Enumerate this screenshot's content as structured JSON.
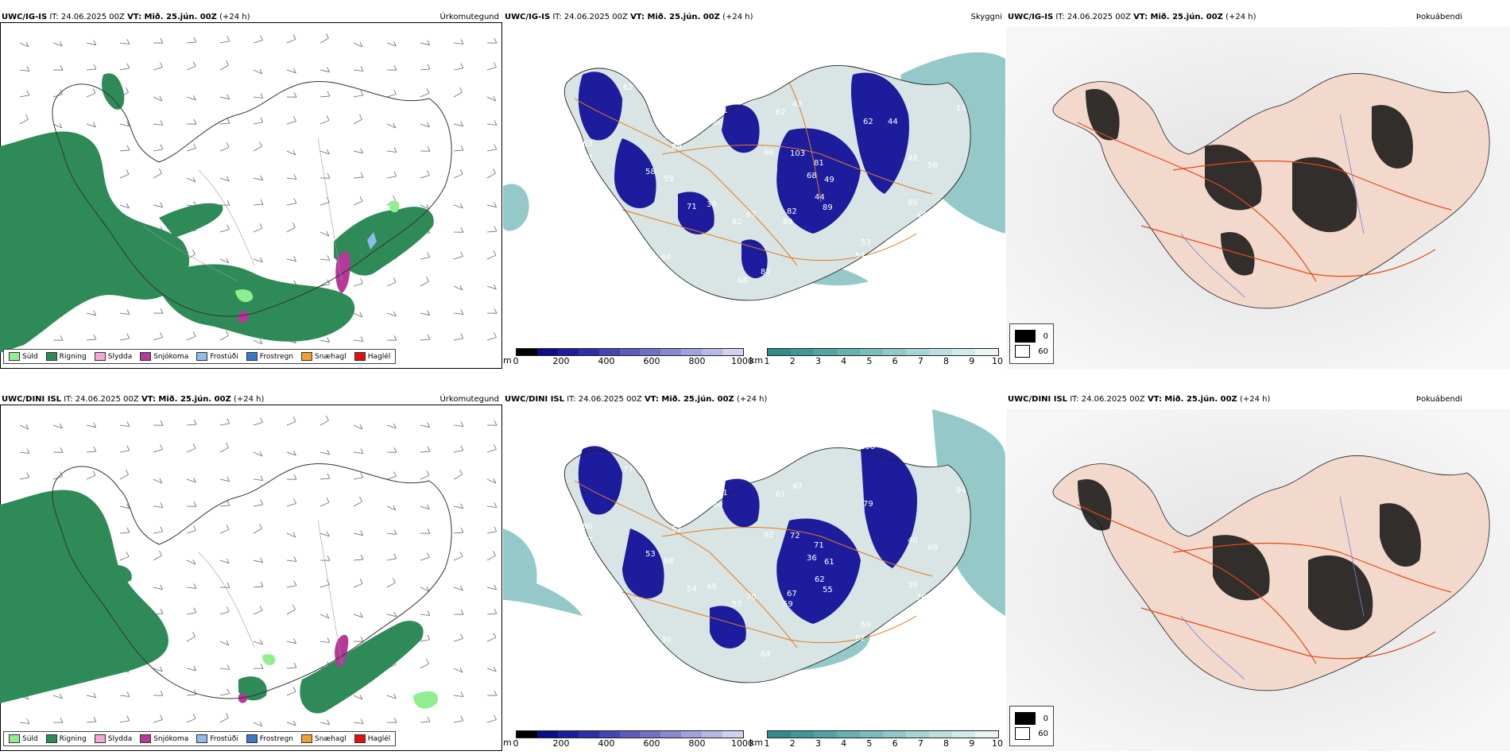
{
  "rows": [
    {
      "model": "UWC/IG-IS",
      "it": "IT: 24.06.2025 00Z",
      "vt": "VT: Mið. 25.jún. 00Z",
      "lead": "(+24 h)",
      "precip_labels": [],
      "cloud_labels": [
        "68",
        "38",
        "62",
        "53",
        "53",
        "13",
        "67",
        "60",
        "85",
        "45",
        "39",
        "82",
        "88",
        "48",
        "66",
        "66",
        "44",
        "59",
        "62",
        "82",
        "62",
        "49",
        "71",
        "43",
        "54",
        "63",
        "81",
        "82",
        "71",
        "48",
        "74",
        "103",
        "69",
        "55",
        "58",
        "61",
        "66",
        "89",
        "58",
        "44",
        "68",
        "52"
      ]
    },
    {
      "model": "UWC/DINI ISL",
      "it": "IT: 24.06.2025 00Z",
      "vt": "VT: Mið. 25.jún. 00Z",
      "lead": "(+24 h)",
      "precip_labels": [],
      "cloud_labels": [
        "36",
        "49",
        "61",
        "69",
        "77",
        "94",
        "70",
        "60",
        "39",
        "42",
        "100",
        "67",
        "57",
        "40",
        "30",
        "81",
        "62",
        "68",
        "79",
        "84",
        "77",
        "61",
        "54",
        "47",
        "82",
        "90",
        "71",
        "55",
        "51",
        "76",
        "81",
        "72",
        "59",
        "60",
        "69",
        "83",
        "92",
        "55",
        "53"
      ]
    }
  ],
  "titles": {
    "precip": "Úrkomutegund",
    "cloud": "Skyggni",
    "lightning": "Þokuábendi"
  },
  "precip_legend": [
    {
      "label": "Súld",
      "color": "#90ee90"
    },
    {
      "label": "Rigning",
      "color": "#2e8b57"
    },
    {
      "label": "Slydda",
      "color": "#f4a6d7"
    },
    {
      "label": "Snjókoma",
      "color": "#b5389a"
    },
    {
      "label": "Frostúði",
      "color": "#8fbbea"
    },
    {
      "label": "Frostregn",
      "color": "#3a78c8"
    },
    {
      "label": "Snæhagl",
      "color": "#f0a030"
    },
    {
      "label": "Haglél",
      "color": "#e01010"
    }
  ],
  "cloud_base_bar": {
    "unit": "m",
    "ticks": [
      "0",
      "200",
      "400",
      "600",
      "800",
      "1000"
    ],
    "colors": [
      "#000000",
      "#0c0c8a",
      "#1c1c9c",
      "#2e2ea8",
      "#4444b4",
      "#5a5abf",
      "#7070c8",
      "#8888d2",
      "#a0a0dc",
      "#b8b8e6",
      "#d0d0f0"
    ]
  },
  "visibility_bar": {
    "unit": "km",
    "ticks": [
      "1",
      "2",
      "3",
      "4",
      "5",
      "6",
      "7",
      "8",
      "9",
      "10"
    ],
    "colors": [
      "#2f8c8c",
      "#3f9898",
      "#52a4a4",
      "#66b0b0",
      "#7bbcbc",
      "#90c8c8",
      "#a6d4d4",
      "#bcdfdf",
      "#d2eaea",
      "#e8f5f5"
    ]
  },
  "fog_legend": [
    {
      "label": "0",
      "color": "#000000"
    },
    {
      "label": "60",
      "color": "#ffffff"
    }
  ]
}
